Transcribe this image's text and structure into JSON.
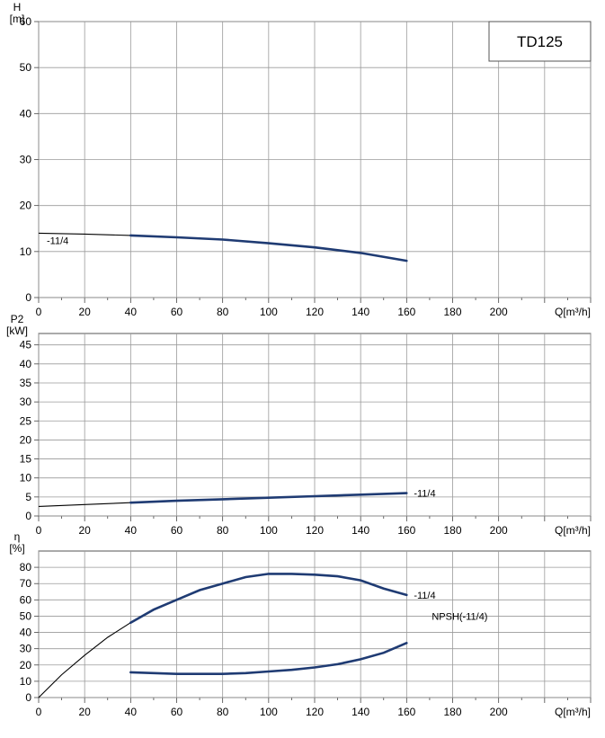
{
  "chart_data": [
    {
      "type": "line",
      "title": "TD125",
      "ylabel": [
        "H",
        "[m]"
      ],
      "xlabel": "Q[m³/h]",
      "xlim": [
        0,
        240
      ],
      "ylim": [
        0,
        60
      ],
      "x_ticks": [
        0,
        20,
        40,
        60,
        80,
        100,
        120,
        140,
        160,
        180,
        200
      ],
      "y_ticks": [
        0,
        10,
        20,
        30,
        40,
        50,
        60
      ],
      "grid": true,
      "series": [
        {
          "name": "-11/4",
          "color": "#1f3b73",
          "thin_x": [
            0,
            40
          ],
          "x": [
            0,
            20,
            40,
            60,
            80,
            100,
            120,
            140,
            160
          ],
          "y": [
            14.0,
            13.8,
            13.5,
            13.1,
            12.6,
            11.8,
            10.9,
            9.7,
            8.0
          ]
        }
      ]
    },
    {
      "type": "line",
      "ylabel": [
        "P2",
        "[kW]"
      ],
      "xlabel": "Q[m³/h]",
      "xlim": [
        0,
        240
      ],
      "ylim": [
        0,
        48
      ],
      "x_ticks": [
        0,
        20,
        40,
        60,
        80,
        100,
        120,
        140,
        160,
        180,
        200
      ],
      "y_ticks": [
        0,
        5,
        10,
        15,
        20,
        25,
        30,
        35,
        40,
        45
      ],
      "grid": true,
      "series": [
        {
          "name": "-11/4",
          "color": "#1f3b73",
          "thin_x": [
            0,
            40
          ],
          "x": [
            0,
            20,
            40,
            60,
            80,
            100,
            120,
            140,
            160
          ],
          "y": [
            2.5,
            3.0,
            3.5,
            4.0,
            4.4,
            4.8,
            5.2,
            5.6,
            6.0
          ]
        }
      ]
    },
    {
      "type": "line",
      "ylabel": [
        "η",
        "[%]"
      ],
      "xlabel": "Q[m³/h]",
      "xlim": [
        0,
        240
      ],
      "ylim": [
        0,
        90
      ],
      "x_ticks": [
        0,
        20,
        40,
        60,
        80,
        100,
        120,
        140,
        160,
        180,
        200
      ],
      "y_ticks": [
        0,
        10,
        20,
        30,
        40,
        50,
        60,
        70,
        80
      ],
      "grid": true,
      "series": [
        {
          "name": "-11/4",
          "color": "#1f3b73",
          "thin_x": [
            0,
            40
          ],
          "x": [
            0,
            10,
            20,
            30,
            40,
            50,
            60,
            70,
            80,
            90,
            100,
            110,
            120,
            130,
            140,
            150,
            160
          ],
          "y": [
            0,
            14,
            26,
            37,
            46,
            54,
            60,
            66,
            70,
            74,
            76,
            76,
            75.5,
            74.5,
            72,
            67,
            63
          ]
        },
        {
          "name": "NPSH(-11/4)",
          "color": "#1f3b73",
          "x": [
            40,
            50,
            60,
            70,
            80,
            90,
            100,
            110,
            120,
            130,
            140,
            150,
            160
          ],
          "y": [
            15.5,
            15.0,
            14.5,
            14.5,
            14.5,
            15.0,
            16.0,
            17.0,
            18.5,
            20.5,
            23.5,
            27.5,
            33.5
          ]
        }
      ]
    }
  ]
}
